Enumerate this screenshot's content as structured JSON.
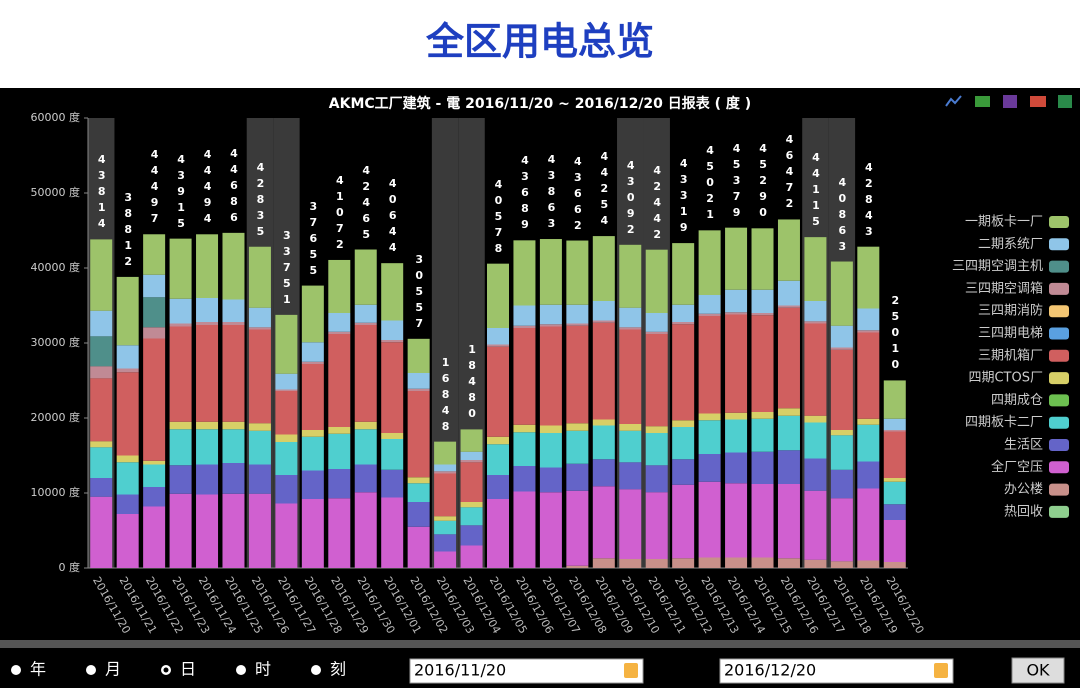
{
  "header": {
    "title": "全区用电总览"
  },
  "chart_data": {
    "type": "stacked-bar",
    "title": "AKMC工厂建筑 - 電 2016/11/20 ~ 2016/12/20 日报表 ( 度 )",
    "categories": [
      "2016/11/20",
      "2016/11/21",
      "2016/11/22",
      "2016/11/23",
      "2016/11/24",
      "2016/11/25",
      "2016/11/26",
      "2016/11/27",
      "2016/11/28",
      "2016/11/29",
      "2016/11/30",
      "2016/12/01",
      "2016/12/02",
      "2016/12/03",
      "2016/12/04",
      "2016/12/05",
      "2016/12/06",
      "2016/12/07",
      "2016/12/08",
      "2016/12/09",
      "2016/12/10",
      "2016/12/11",
      "2016/12/12",
      "2016/12/13",
      "2016/12/14",
      "2016/12/15",
      "2016/12/16",
      "2016/12/17",
      "2016/12/18",
      "2016/12/19",
      "2016/12/20"
    ],
    "totals": [
      43814,
      38812,
      44497,
      43915,
      44494,
      44686,
      42835,
      33751,
      37655,
      41072,
      42465,
      40644,
      30557,
      16848,
      18480,
      40578,
      43689,
      43863,
      43662,
      44254,
      43092,
      42442,
      43319,
      45021,
      45379,
      45290,
      46472,
      44115,
      40863,
      42843,
      25010
    ],
    "shaded": [
      0,
      6,
      7,
      13,
      14,
      20,
      21,
      27,
      28
    ],
    "ylim": [
      0,
      60000
    ],
    "yticks": [
      {
        "value": 0,
        "label": "0 度"
      },
      {
        "value": 10000,
        "label": "10000 度"
      },
      {
        "value": 20000,
        "label": "20000 度"
      },
      {
        "value": 30000,
        "label": "30000 度"
      },
      {
        "value": 40000,
        "label": "40000 度"
      },
      {
        "value": 50000,
        "label": "50000 度"
      },
      {
        "value": 60000,
        "label": "60000 度"
      }
    ],
    "grid": false,
    "legend": "right",
    "series": [
      {
        "name": "一期板卡一厂",
        "color": "#9dc36a",
        "values": [
          9514,
          9112,
          5397,
          8015,
          8494,
          8886,
          8135,
          7851,
          7555,
          7072,
          7365,
          7644,
          4557,
          3048,
          2980,
          8578,
          8689,
          8763,
          8562,
          8654,
          8392,
          8442,
          8219,
          8621,
          8279,
          8190,
          8172,
          8515,
          8563,
          8243,
          5110
        ]
      },
      {
        "name": "二期系统厂",
        "color": "#8fc5e8",
        "values": [
          3400,
          3100,
          3000,
          3300,
          3200,
          3000,
          2600,
          2100,
          2600,
          2500,
          2400,
          2600,
          2100,
          900,
          1100,
          2200,
          2700,
          2600,
          2500,
          2600,
          2600,
          2500,
          2300,
          2500,
          3000,
          3100,
          3300,
          2700,
          2900,
          2900,
          1500
        ]
      },
      {
        "name": "三四期空调主机",
        "color": "#4f8f8a",
        "values": [
          4000,
          0,
          4000,
          0,
          0,
          0,
          0,
          0,
          0,
          0,
          0,
          0,
          0,
          0,
          0,
          0,
          0,
          0,
          0,
          0,
          0,
          0,
          0,
          0,
          0,
          0,
          0,
          0,
          0,
          0,
          0
        ]
      },
      {
        "name": "三四期空调箱",
        "color": "#c08a95",
        "values": [
          1600,
          500,
          1500,
          400,
          400,
          400,
          300,
          200,
          300,
          300,
          300,
          300,
          300,
          300,
          300,
          300,
          300,
          300,
          300,
          300,
          300,
          300,
          300,
          300,
          300,
          300,
          300,
          300,
          300,
          300,
          200
        ]
      },
      {
        "name": "三四期消防",
        "color": "#f3c673",
        "values": [
          0,
          0,
          0,
          0,
          0,
          0,
          0,
          0,
          0,
          0,
          0,
          0,
          0,
          0,
          0,
          0,
          0,
          0,
          0,
          0,
          0,
          0,
          0,
          0,
          0,
          0,
          0,
          0,
          0,
          0,
          0
        ]
      },
      {
        "name": "三四期电梯",
        "color": "#5aa0e0",
        "values": [
          0,
          0,
          0,
          0,
          0,
          0,
          0,
          0,
          0,
          0,
          0,
          0,
          0,
          0,
          0,
          0,
          0,
          0,
          0,
          0,
          0,
          0,
          0,
          0,
          0,
          0,
          0,
          0,
          0,
          0,
          0
        ]
      },
      {
        "name": "三期机箱厂",
        "color": "#d05f5f",
        "values": [
          8400,
          11100,
          16300,
          12700,
          12900,
          12900,
          12500,
          5800,
          8800,
          12400,
          12900,
          12100,
          11500,
          5700,
          5300,
          12000,
          12900,
          13200,
          13000,
          12900,
          12600,
          12300,
          12800,
          13000,
          13100,
          12900,
          13400,
          12300,
          10700,
          11500,
          6200
        ]
      },
      {
        "name": "四期CTOS厂",
        "color": "#d7cf67",
        "values": [
          800,
          900,
          500,
          1000,
          1000,
          1000,
          1000,
          1000,
          900,
          900,
          1000,
          800,
          800,
          600,
          700,
          1000,
          1000,
          1000,
          1000,
          800,
          900,
          900,
          900,
          900,
          900,
          900,
          1000,
          900,
          700,
          800,
          500
        ]
      },
      {
        "name": "四期成仓",
        "color": "#6cc050",
        "values": [
          0,
          0,
          0,
          0,
          0,
          0,
          0,
          0,
          0,
          0,
          0,
          0,
          0,
          0,
          0,
          0,
          0,
          0,
          0,
          0,
          0,
          0,
          0,
          0,
          0,
          0,
          0,
          0,
          0,
          0,
          0
        ]
      },
      {
        "name": "四期板卡二厂",
        "color": "#4fcfcf",
        "values": [
          4100,
          4300,
          3000,
          4800,
          4700,
          4500,
          4500,
          4400,
          4500,
          4700,
          4700,
          4100,
          2500,
          1800,
          2400,
          4100,
          4500,
          4600,
          4400,
          4500,
          4200,
          4300,
          4300,
          4500,
          4400,
          4400,
          4600,
          4800,
          4600,
          4900,
          3000
        ]
      },
      {
        "name": "生活区",
        "color": "#6464c8",
        "values": [
          2500,
          2600,
          2600,
          3800,
          4000,
          4100,
          3900,
          3800,
          3800,
          3900,
          3700,
          3700,
          3300,
          2300,
          2700,
          3200,
          3400,
          3300,
          3600,
          3600,
          3600,
          3600,
          3400,
          3700,
          4100,
          4300,
          4500,
          4300,
          3800,
          3600,
          2100
        ]
      },
      {
        "name": "全厂空压",
        "color": "#d060d0",
        "values": [
          9500,
          7200,
          8200,
          9900,
          9800,
          9900,
          9900,
          8600,
          9200,
          9300,
          10100,
          9400,
          5500,
          2200,
          3000,
          9200,
          10200,
          10100,
          10000,
          9600,
          9300,
          8900,
          9800,
          10100,
          9900,
          9800,
          9900,
          9200,
          8400,
          9600,
          5600
        ]
      },
      {
        "name": "办公楼",
        "color": "#c8908a",
        "values": [
          0,
          0,
          0,
          0,
          0,
          0,
          0,
          0,
          0,
          0,
          0,
          0,
          0,
          0,
          0,
          0,
          0,
          0,
          300,
          1300,
          1200,
          1200,
          1300,
          1400,
          1400,
          1400,
          1300,
          1100,
          900,
          1000,
          800
        ]
      },
      {
        "name": "热回收",
        "color": "#8fcf8f",
        "values": [
          0,
          0,
          0,
          0,
          0,
          0,
          0,
          0,
          0,
          0,
          0,
          0,
          0,
          0,
          0,
          0,
          0,
          0,
          0,
          0,
          0,
          0,
          0,
          0,
          0,
          0,
          0,
          0,
          0,
          0,
          0
        ]
      }
    ]
  },
  "controls": {
    "periods": [
      "年",
      "月",
      "日",
      "时",
      "刻"
    ],
    "selected_period": 2,
    "start_date": "2016/11/20",
    "end_date": "2016/12/20",
    "button": "OK"
  }
}
